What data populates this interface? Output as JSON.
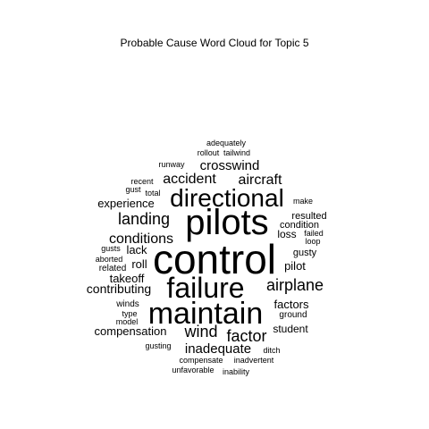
{
  "chart_data": {
    "type": "wordcloud",
    "title": "Probable Cause Word Cloud for Topic 5",
    "color": "#000000",
    "words": [
      {
        "text": "control",
        "weight": 100
      },
      {
        "text": "maintain",
        "weight": 78
      },
      {
        "text": "pilots",
        "weight": 78
      },
      {
        "text": "failure",
        "weight": 72
      },
      {
        "text": "directional",
        "weight": 58
      },
      {
        "text": "airplane",
        "weight": 38
      },
      {
        "text": "landing",
        "weight": 36
      },
      {
        "text": "wind",
        "weight": 36
      },
      {
        "text": "factor",
        "weight": 36
      },
      {
        "text": "conditions",
        "weight": 32
      },
      {
        "text": "accident",
        "weight": 31
      },
      {
        "text": "aircraft",
        "weight": 31
      },
      {
        "text": "crosswind",
        "weight": 29
      },
      {
        "text": "inadequate",
        "weight": 29
      },
      {
        "text": "contributing",
        "weight": 27
      },
      {
        "text": "experience",
        "weight": 26
      },
      {
        "text": "compensation",
        "weight": 26
      },
      {
        "text": "factors",
        "weight": 26
      },
      {
        "text": "pilot",
        "weight": 26
      },
      {
        "text": "takeoff",
        "weight": 25
      },
      {
        "text": "lack",
        "weight": 24
      },
      {
        "text": "roll",
        "weight": 24
      },
      {
        "text": "loss",
        "weight": 22
      },
      {
        "text": "student",
        "weight": 22
      },
      {
        "text": "resulted",
        "weight": 21
      },
      {
        "text": "condition",
        "weight": 20
      },
      {
        "text": "gusty",
        "weight": 20
      },
      {
        "text": "related",
        "weight": 19
      },
      {
        "text": "ground",
        "weight": 19
      },
      {
        "text": "winds",
        "weight": 18
      },
      {
        "text": "runway",
        "weight": 17
      },
      {
        "text": "type",
        "weight": 17
      },
      {
        "text": "recent",
        "weight": 16
      },
      {
        "text": "gust",
        "weight": 16
      },
      {
        "text": "total",
        "weight": 16
      },
      {
        "text": "make",
        "weight": 16
      },
      {
        "text": "failed",
        "weight": 16
      },
      {
        "text": "loop",
        "weight": 16
      },
      {
        "text": "gusts",
        "weight": 16
      },
      {
        "text": "aborted",
        "weight": 16
      },
      {
        "text": "model",
        "weight": 16
      },
      {
        "text": "gusting",
        "weight": 16
      },
      {
        "text": "ditch",
        "weight": 16
      },
      {
        "text": "compensate",
        "weight": 16
      },
      {
        "text": "inadvertent",
        "weight": 16
      },
      {
        "text": "unfavorable",
        "weight": 16
      },
      {
        "text": "inability",
        "weight": 15
      },
      {
        "text": "adequately",
        "weight": 16
      },
      {
        "text": "rollout",
        "weight": 16
      },
      {
        "text": "tailwind",
        "weight": 16
      }
    ]
  }
}
